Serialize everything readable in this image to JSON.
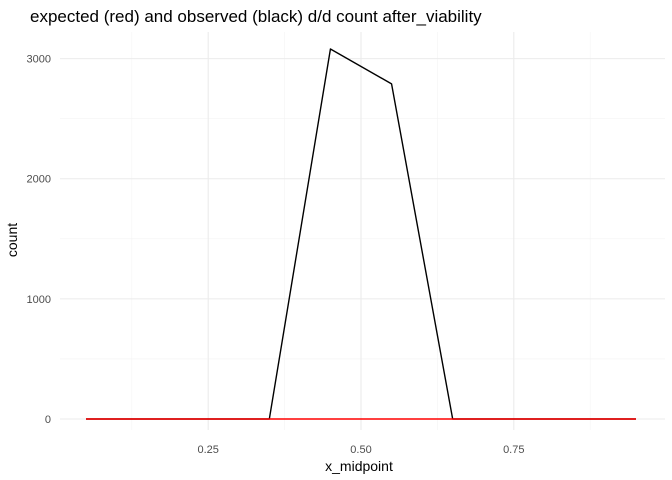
{
  "chart_data": {
    "type": "line",
    "title": "expected (red) and observed (black) d/d count after_viability",
    "xlabel": "x_midpoint",
    "ylabel": "count",
    "xlim": [
      0.05,
      0.95
    ],
    "ylim": [
      0,
      3080
    ],
    "x_ticks": [
      0.25,
      0.5,
      0.75
    ],
    "x_tick_labels": [
      "0.25",
      "0.50",
      "0.75"
    ],
    "x_minor_ticks": [
      0.125,
      0.375,
      0.625,
      0.875
    ],
    "y_ticks": [
      0,
      1000,
      2000,
      3000
    ],
    "y_tick_labels": [
      "0",
      "1000",
      "2000",
      "3000"
    ],
    "y_minor_ticks": [
      500,
      1500,
      2500
    ],
    "grid": true,
    "legend": "none",
    "x": [
      0.05,
      0.15,
      0.25,
      0.35,
      0.45,
      0.55,
      0.65,
      0.75,
      0.85,
      0.95
    ],
    "series": [
      {
        "color": "#000000",
        "values": [
          0,
          0,
          0,
          0,
          3080,
          2790,
          0,
          0,
          0,
          0
        ]
      },
      {
        "color": "#ff0000",
        "values": [
          0,
          0,
          0,
          0,
          0,
          0,
          0,
          0,
          0,
          0
        ]
      }
    ]
  }
}
